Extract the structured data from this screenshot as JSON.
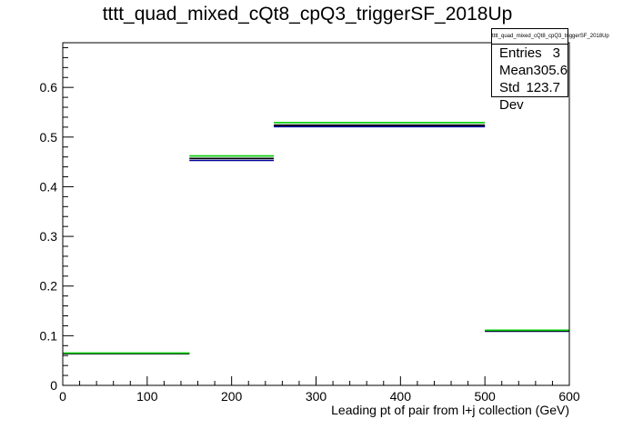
{
  "chart_data": {
    "type": "line",
    "title": "tttt_quad_mixed_cQt8_cpQ3_triggerSF_2018Up",
    "xlabel": "Leading pt of pair from l+j collection (GeV)",
    "ylabel": "",
    "xlim": [
      0,
      600
    ],
    "ylim": [
      0,
      0.69
    ],
    "x_ticks": [
      0,
      100,
      200,
      300,
      400,
      500,
      600
    ],
    "x_tick_labels": [
      "0",
      "100",
      "200",
      "300",
      "400",
      "500",
      "600"
    ],
    "y_ticks": [
      0,
      0.1,
      0.2,
      0.3,
      0.4,
      0.5,
      0.6
    ],
    "y_tick_labels": [
      "0",
      "0.1",
      "0.2",
      "0.3",
      "0.4",
      "0.5",
      "0.6"
    ],
    "bin_edges": [
      0,
      150,
      250,
      500,
      600
    ],
    "series": [
      {
        "color": "#000099",
        "values": [
          0.064,
          0.453,
          0.521,
          0.109
        ]
      },
      {
        "color": "#000000",
        "values": [
          0.064,
          0.457,
          0.524,
          0.11
        ]
      },
      {
        "color": "#00cc00",
        "values": [
          0.065,
          0.462,
          0.529,
          0.111
        ]
      }
    ],
    "grid": false,
    "legend": "none"
  },
  "stats": {
    "title": "tttt_quad_mixed_cQt8_cpQ3_triggerSF_2018Up",
    "rows": [
      {
        "label": "Entries",
        "value": "3"
      },
      {
        "label": "Mean",
        "value": "305.6"
      },
      {
        "label": "Std Dev",
        "value": "123.7"
      }
    ]
  }
}
